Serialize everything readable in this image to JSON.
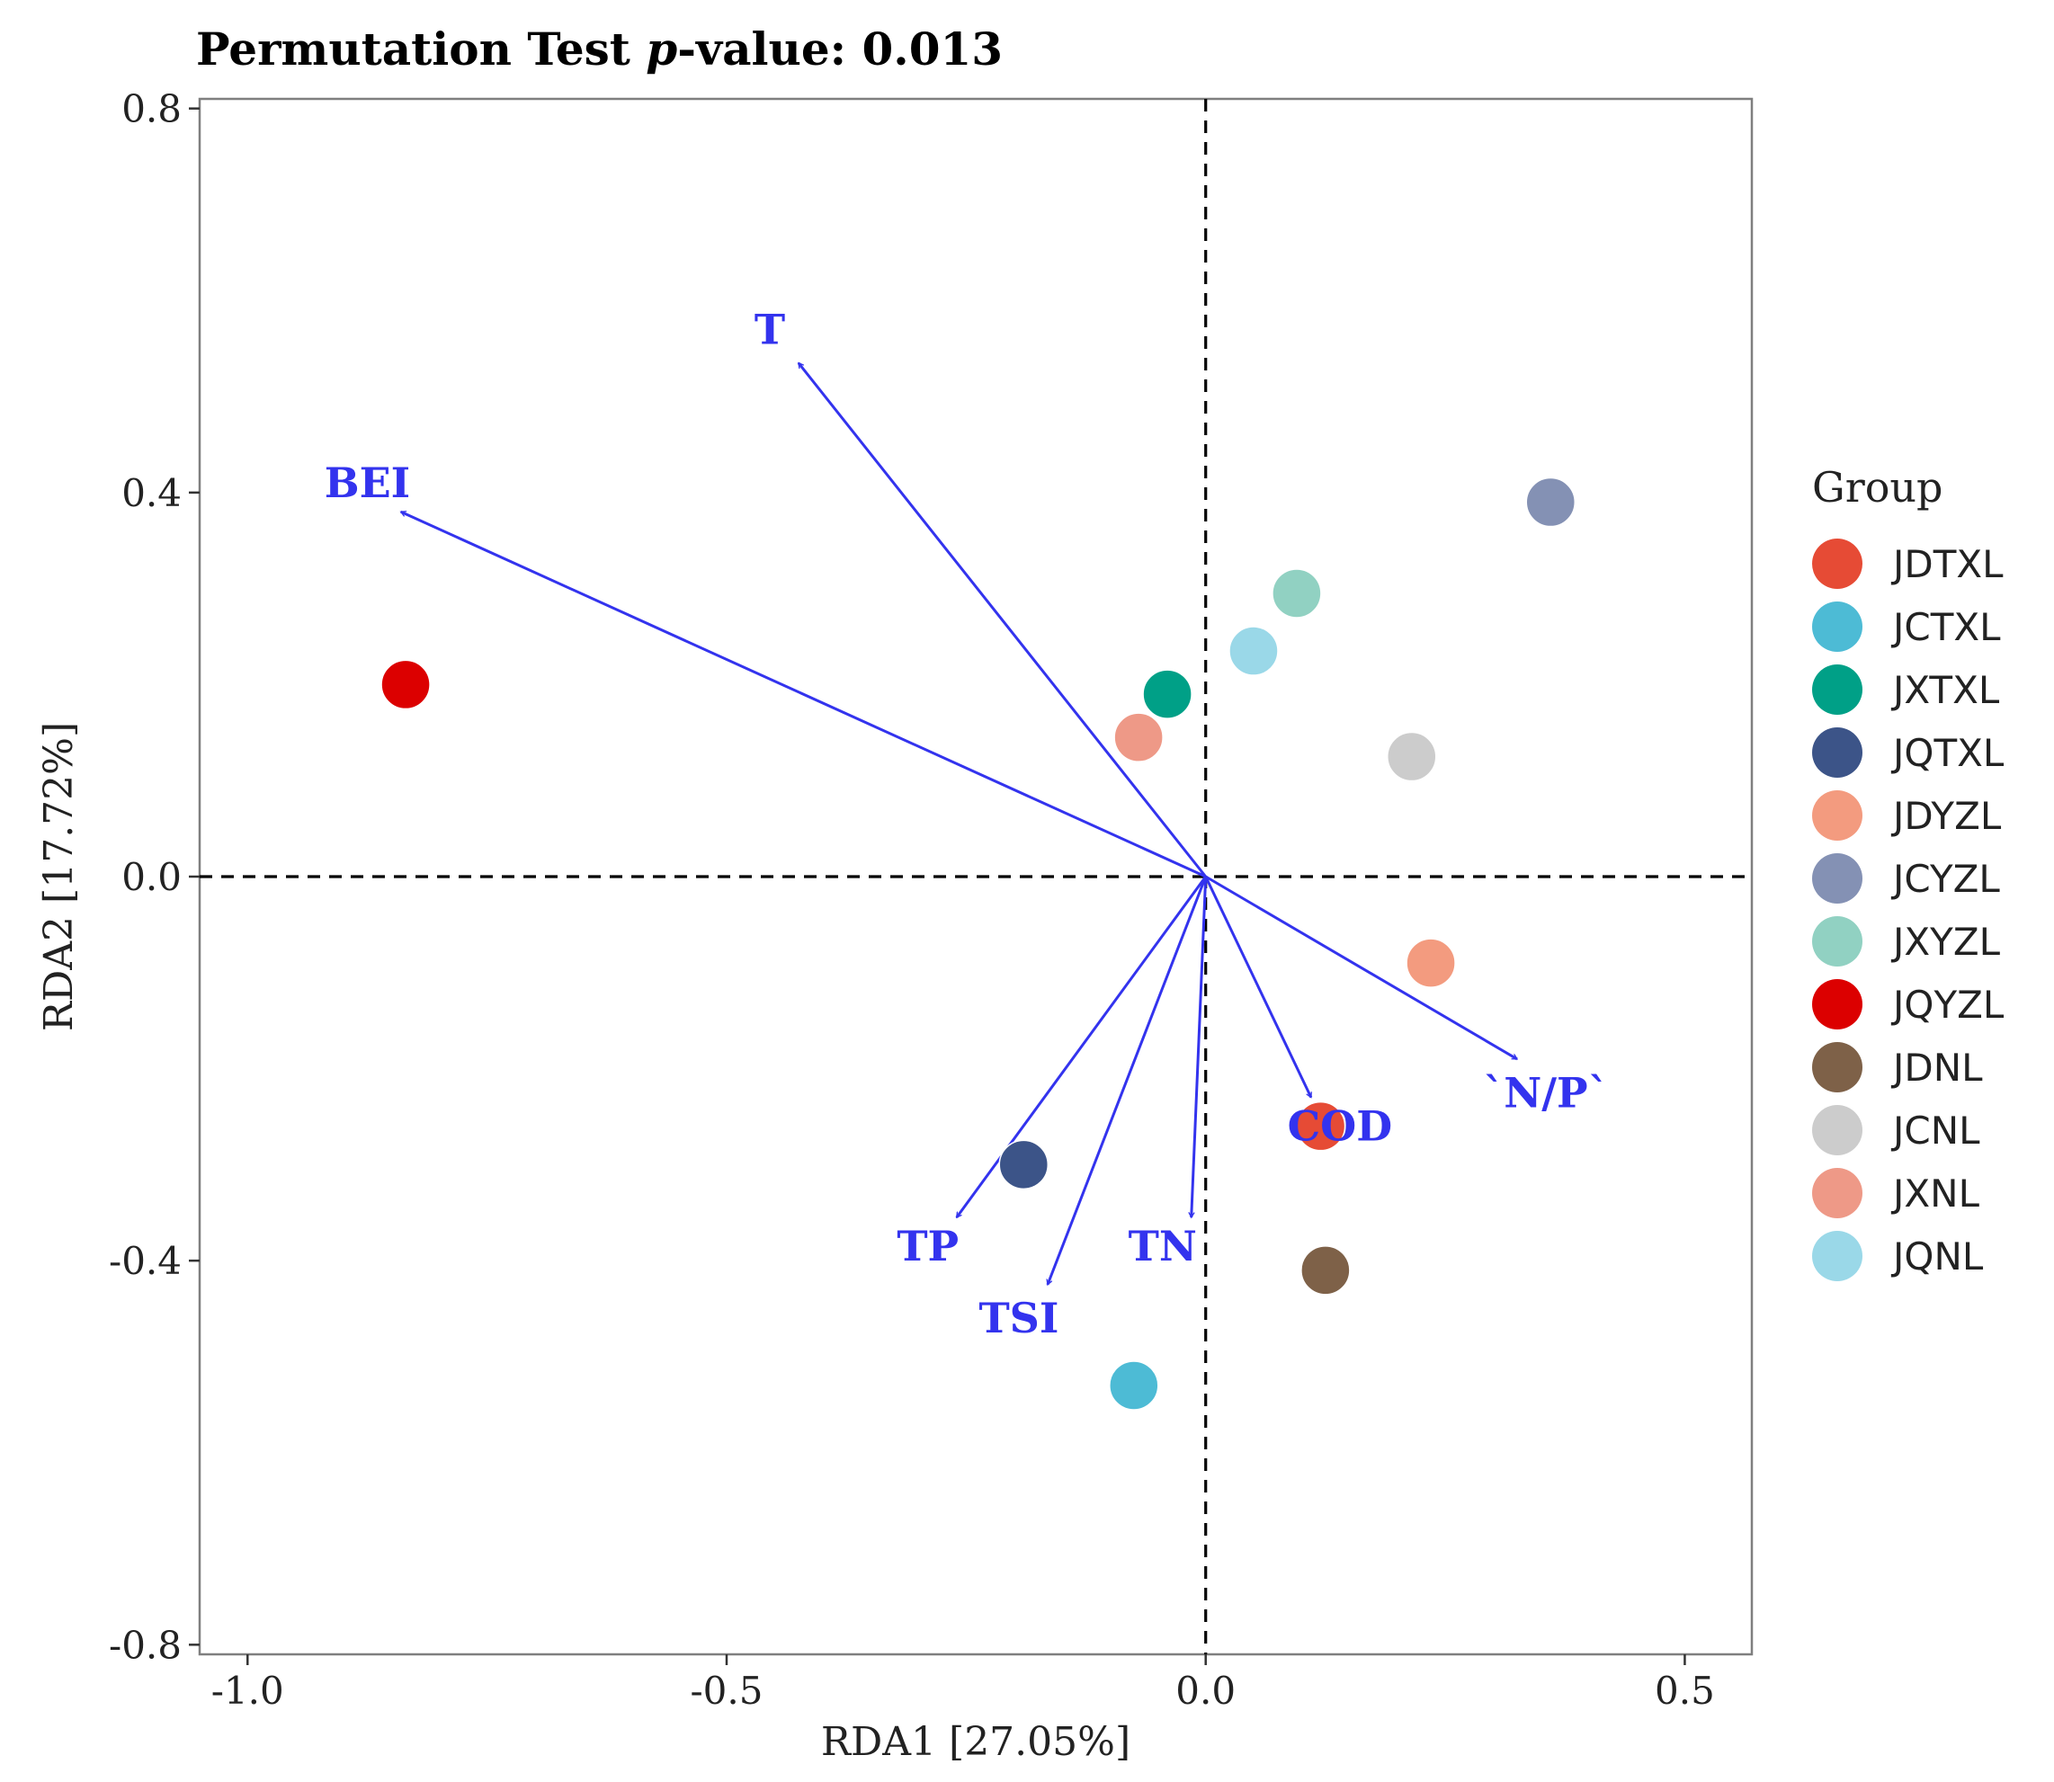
{
  "chart_data": {
    "type": "scatter",
    "subtype": "rda-biplot",
    "title": "Permutation Test p-value: 0.013",
    "title_prefix": "Permutation Test ",
    "title_italic": "p",
    "title_suffix": "-value: 0.013",
    "xlabel": "RDA1 [27.05%]",
    "ylabel": "RDA2 [17.72%]",
    "xlim": [
      -1.05,
      0.57
    ],
    "ylim": [
      -0.81,
      0.81
    ],
    "x_ticks": [
      -1.0,
      -0.5,
      0.0,
      0.5
    ],
    "x_tick_labels": [
      "-1.0",
      "-0.5",
      "0.0",
      "0.5"
    ],
    "y_ticks": [
      -0.8,
      -0.4,
      0.0,
      0.4,
      0.8
    ],
    "y_tick_labels": [
      "-0.8",
      "-0.4",
      "0.0",
      "0.4",
      "0.8"
    ],
    "grid": false,
    "reference_lines": {
      "x": 0.0,
      "y": 0.0,
      "style": "dashed"
    },
    "legend_title": "Group",
    "legend_position": "right",
    "groups": [
      {
        "name": "JDTXL",
        "color": "#E64B35"
      },
      {
        "name": "JCTXL",
        "color": "#4DBBD5"
      },
      {
        "name": "JXTXL",
        "color": "#00A087"
      },
      {
        "name": "JQTXL",
        "color": "#3C5488"
      },
      {
        "name": "JDYZL",
        "color": "#F39B7F"
      },
      {
        "name": "JCYZL",
        "color": "#8491B4"
      },
      {
        "name": "JXYZL",
        "color": "#91D1C2"
      },
      {
        "name": "JQYZL",
        "color": "#DC0000"
      },
      {
        "name": "JDNL",
        "color": "#7E6148"
      },
      {
        "name": "JCNL",
        "color": "#CCCCCC"
      },
      {
        "name": "JXNL",
        "color": "#EE9987"
      },
      {
        "name": "JQNL",
        "color": "#9AD8E8"
      }
    ],
    "points": [
      {
        "group": "JDTXL",
        "x": 0.12,
        "y": -0.26
      },
      {
        "group": "JCTXL",
        "x": -0.075,
        "y": -0.53
      },
      {
        "group": "JXTXL",
        "x": -0.04,
        "y": 0.19
      },
      {
        "group": "JQTXL",
        "x": -0.19,
        "y": -0.3
      },
      {
        "group": "JDYZL",
        "x": 0.235,
        "y": -0.09
      },
      {
        "group": "JCYZL",
        "x": 0.36,
        "y": 0.39
      },
      {
        "group": "JXYZL",
        "x": 0.095,
        "y": 0.295
      },
      {
        "group": "JQYZL",
        "x": -0.835,
        "y": 0.2
      },
      {
        "group": "JDNL",
        "x": 0.125,
        "y": -0.41
      },
      {
        "group": "JCNL",
        "x": 0.215,
        "y": 0.125
      },
      {
        "group": "JXNL",
        "x": -0.07,
        "y": 0.145
      },
      {
        "group": "JQNL",
        "x": 0.05,
        "y": 0.235
      }
    ],
    "vector_color": "#3333EE",
    "vectors": [
      {
        "name": "T",
        "x": -0.425,
        "y": 0.535,
        "label_x": -0.455,
        "label_y": 0.57
      },
      {
        "name": "BEI",
        "x": -0.84,
        "y": 0.38,
        "label_x": -0.875,
        "label_y": 0.41
      },
      {
        "name": "`N/P`",
        "x": 0.325,
        "y": -0.19,
        "label_x": 0.355,
        "label_y": -0.225
      },
      {
        "name": "COD",
        "x": 0.11,
        "y": -0.23,
        "label_x": 0.14,
        "label_y": -0.26
      },
      {
        "name": "TN",
        "x": -0.015,
        "y": -0.355,
        "label_x": -0.045,
        "label_y": -0.385
      },
      {
        "name": "TP",
        "x": -0.26,
        "y": -0.355,
        "label_x": -0.29,
        "label_y": -0.385
      },
      {
        "name": "TSI",
        "x": -0.165,
        "y": -0.425,
        "label_x": -0.195,
        "label_y": -0.46
      }
    ]
  }
}
